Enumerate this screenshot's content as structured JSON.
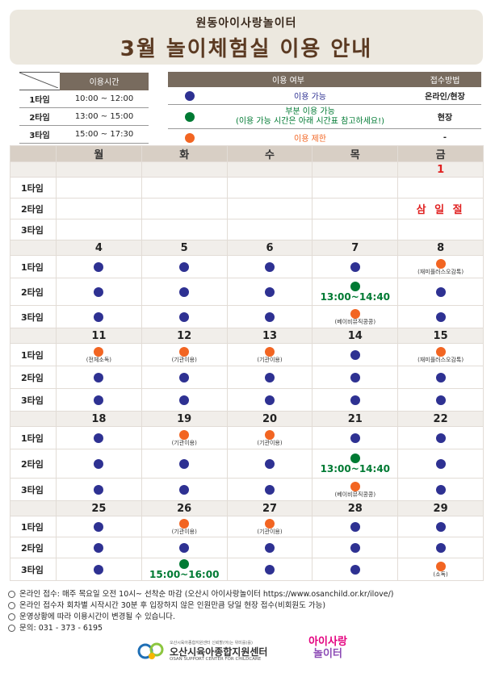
{
  "banner": {
    "subtitle": "원동아이사랑놀이터",
    "title": "3월 놀이체험실 이용 안내"
  },
  "time_table": {
    "header": "이용시간",
    "rows": [
      {
        "label": "1타임",
        "time": "10:00 ~ 12:00"
      },
      {
        "label": "2타임",
        "time": "13:00 ~ 15:00"
      },
      {
        "label": "3타임",
        "time": "15:00 ~ 17:30"
      }
    ]
  },
  "legend": {
    "header_status": "이용 여부",
    "header_method": "접수방법",
    "rows": [
      {
        "color": "#2e3192",
        "text": "이용 가능",
        "method": "온라인/현장"
      },
      {
        "color": "#007a33",
        "text": "부분 이용 가능",
        "text2": "(이용 가능 시간은 아래 시간표 참고하세요!)",
        "method": "현장"
      },
      {
        "color": "#f26522",
        "text": "이용 제한",
        "method": "-"
      }
    ]
  },
  "calendar": {
    "days": [
      "월",
      "화",
      "수",
      "목",
      "금"
    ],
    "slots": [
      "1타임",
      "2타임",
      "3타임"
    ],
    "weeks": [
      {
        "dates": [
          "",
          "",
          "",
          "",
          "1"
        ],
        "cells": [
          [
            "",
            "",
            "",
            "",
            ""
          ],
          [
            "",
            "",
            "",
            "",
            "holiday"
          ],
          [
            "",
            "",
            "",
            "",
            ""
          ]
        ]
      },
      {
        "dates": [
          "4",
          "5",
          "6",
          "7",
          "8"
        ],
        "cells": [
          [
            "B",
            "B",
            "B",
            "B",
            "O:(재미플러스오감톡)"
          ],
          [
            "B",
            "B",
            "B",
            "G:13:00~14:40",
            "B"
          ],
          [
            "B",
            "B",
            "B",
            "O:(베이비뮤직콩콩)",
            "B"
          ]
        ]
      },
      {
        "dates": [
          "11",
          "12",
          "13",
          "14",
          "15"
        ],
        "cells": [
          [
            "O:(전체소독)",
            "O:(기관이용)",
            "O:(기관이용)",
            "B",
            "O:(재미플러스오감톡)"
          ],
          [
            "B",
            "B",
            "B",
            "B",
            "B"
          ],
          [
            "B",
            "B",
            "B",
            "B",
            "B"
          ]
        ]
      },
      {
        "dates": [
          "18",
          "19",
          "20",
          "21",
          "22"
        ],
        "cells": [
          [
            "B",
            "O:(기관이용)",
            "O:(기관이용)",
            "B",
            "B"
          ],
          [
            "B",
            "B",
            "B",
            "G:13:00~14:40",
            "B"
          ],
          [
            "B",
            "B",
            "B",
            "O:(베이비뮤직콩콩)",
            "B"
          ]
        ]
      },
      {
        "dates": [
          "25",
          "26",
          "27",
          "28",
          "29"
        ],
        "cells": [
          [
            "B",
            "O:(기관이용)",
            "O:(기관이용)",
            "B",
            "B"
          ],
          [
            "B",
            "B",
            "B",
            "B",
            "B"
          ],
          [
            "B",
            "G:15:00~16:00",
            "B",
            "B",
            "O:(소독)"
          ]
        ]
      }
    ],
    "holiday_text": "삼 일 절"
  },
  "footer": {
    "lines": [
      "온라인 접수: 매주 목요일 오전 10시~ 선착순 마감 (오산시 아이사랑놀이터 https://www.osanchild.or.kr/ilove/)",
      "온라인 접수자 회차별 시작시간 30분 후 입장하지 않은 인원만큼 당일 현장 접수(비회원도 가능)",
      "운영상황에 따라 이용시간이 변경될 수 있습니다.",
      "문의: 031 - 373 - 6195"
    ],
    "logo1_small": "오산시육아종합지원센터 신뢰할(어)는 위미를(를)",
    "logo1_name": "오산시육아종합지원센터",
    "logo1_eng": "OSAN SUPPORT CENTER FOR CHILDCARE",
    "logo2_top": "아이사랑",
    "logo2_bottom": "놀이터"
  }
}
